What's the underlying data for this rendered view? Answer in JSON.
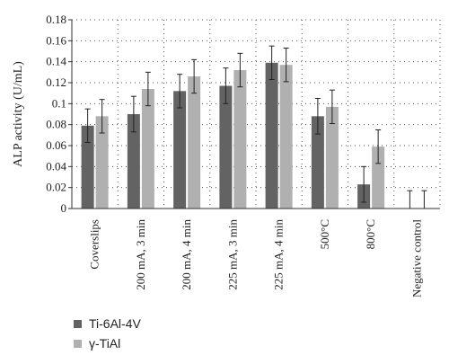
{
  "chart_data": {
    "type": "bar",
    "ylabel": "ALP activity (U/mL)",
    "xlabel": "",
    "ylim": [
      0,
      0.18
    ],
    "yticks": [
      "0",
      "0.02",
      "0.04",
      "0.06",
      "0.08",
      "0.1",
      "0.12",
      "0.14",
      "0.16",
      "0.18"
    ],
    "grid": "dotted",
    "legend_position": "bottom-left",
    "categories": [
      "Coverslips",
      "200 mA, 3 min",
      "200 mA, 4 min",
      "225 mA, 3 min",
      "225 mA, 4 min",
      "500°C",
      "800°C",
      "Negative control"
    ],
    "series": [
      {
        "name": "Ti-6Al-4V",
        "color": "#636363",
        "values": [
          0.079,
          0.09,
          0.112,
          0.117,
          0.139,
          0.088,
          0.023,
          0
        ],
        "errors": [
          0.016,
          0.017,
          0.016,
          0.017,
          0.016,
          0.017,
          0.017,
          0.017
        ]
      },
      {
        "name": "γ-TiAl",
        "color": "#b0b0b0",
        "values": [
          0.088,
          0.114,
          0.126,
          0.132,
          0.137,
          0.097,
          0.059,
          0
        ],
        "errors": [
          0.016,
          0.016,
          0.016,
          0.016,
          0.016,
          0.016,
          0.016,
          0.017
        ]
      }
    ]
  },
  "legend": [
    {
      "label": "Ti-6Al-4V",
      "color": "#636363"
    },
    {
      "label": "γ-TiAl",
      "color": "#b0b0b0"
    }
  ]
}
